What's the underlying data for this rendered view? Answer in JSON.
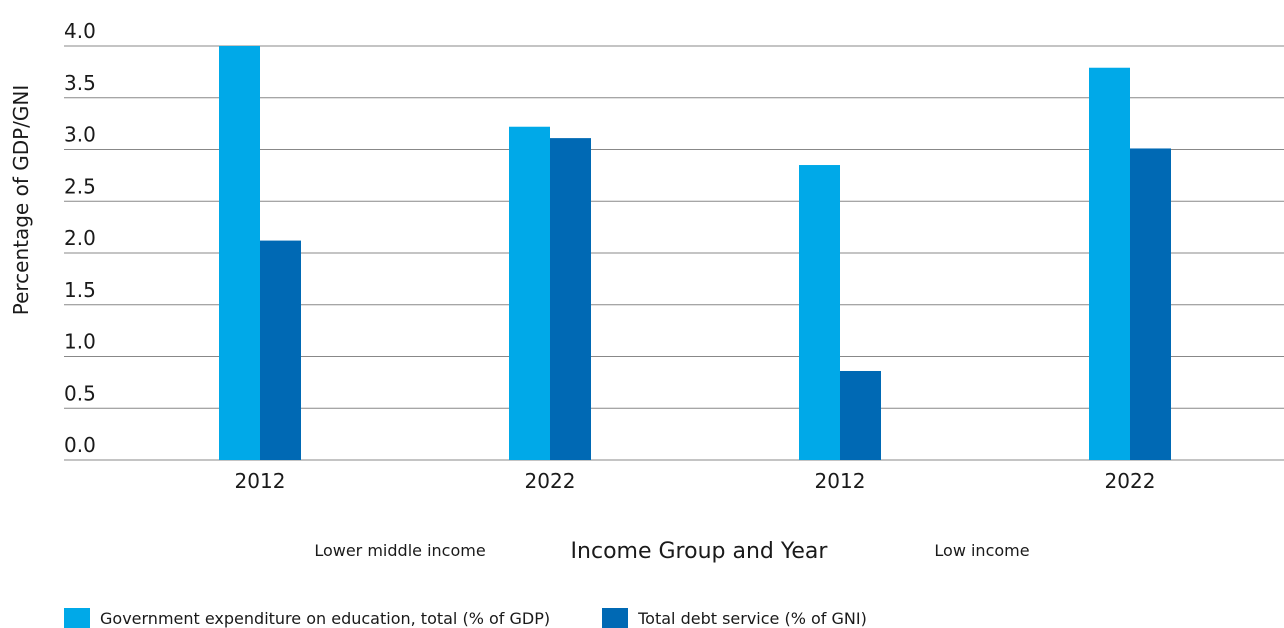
{
  "colors": {
    "series_1": "#00a9e8",
    "series_2": "#0069b4",
    "grid": "#888888"
  },
  "chart_data": {
    "type": "bar",
    "title": "",
    "xlabel": "Income Group and Year",
    "ylabel": "Percentage of GDP/GNI",
    "ylim": [
      0,
      4.0
    ],
    "yticks": [
      "0.0",
      "0.5",
      "1.0",
      "1.5",
      "2.0",
      "2.5",
      "3.0",
      "3.5",
      "4.0"
    ],
    "grid": true,
    "legend_position": "bottom-left",
    "categories": [
      "2012",
      "2022",
      "2012",
      "2022"
    ],
    "groups": [
      {
        "label": "Lower middle income",
        "categories": [
          "2012",
          "2022"
        ]
      },
      {
        "label": "Low income",
        "categories": [
          "2012",
          "2022"
        ]
      }
    ],
    "series": [
      {
        "name": "Government expenditure on education, total (% of GDP)",
        "values": [
          4.0,
          3.22,
          2.85,
          3.79
        ]
      },
      {
        "name": "Total debt service (% of GNI)",
        "values": [
          2.12,
          3.11,
          0.86,
          3.01
        ]
      }
    ]
  }
}
